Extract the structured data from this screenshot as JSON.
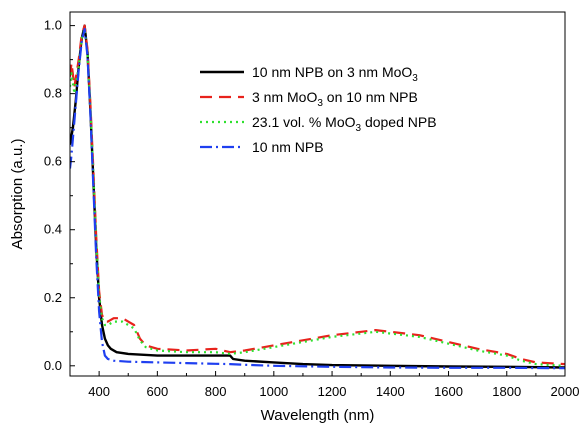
{
  "chart_data": {
    "type": "line",
    "title": "",
    "xlabel": "Wavelength (nm)",
    "ylabel": "Absorption (a.u.)",
    "xlim": [
      300,
      2000
    ],
    "ylim": [
      -0.03,
      1.04
    ],
    "xticks": [
      400,
      600,
      800,
      1000,
      1200,
      1400,
      1600,
      1800,
      2000
    ],
    "yticks": [
      0.0,
      0.2,
      0.4,
      0.6,
      0.8,
      1.0
    ],
    "ytick_labels": [
      "0.0",
      "0.2",
      "0.4",
      "0.6",
      "0.8",
      "1.0"
    ],
    "grid": false,
    "legend_position": "top-right",
    "series": [
      {
        "name": "10 nm NPB on 3 nm MoO3",
        "label_parts": [
          "10 nm NPB on 3 nm MoO",
          "3",
          ""
        ],
        "color": "#000000",
        "dash": "solid",
        "x": [
          300,
          310,
          320,
          330,
          340,
          350,
          360,
          370,
          380,
          390,
          400,
          410,
          420,
          430,
          440,
          460,
          500,
          600,
          700,
          800,
          850,
          860,
          900,
          1000,
          1100,
          1200,
          1400,
          1600,
          1800,
          2000
        ],
        "y": [
          0.65,
          0.7,
          0.78,
          0.88,
          0.96,
          1.0,
          0.92,
          0.75,
          0.55,
          0.35,
          0.2,
          0.12,
          0.08,
          0.06,
          0.05,
          0.04,
          0.035,
          0.03,
          0.03,
          0.03,
          0.03,
          0.02,
          0.015,
          0.01,
          0.005,
          0.002,
          0.0,
          -0.002,
          -0.003,
          -0.005
        ]
      },
      {
        "name": "3 nm MoO3 on 10 nm NPB",
        "label_parts": [
          "3 nm MoO",
          "3",
          " on 10 nm NPB"
        ],
        "color": "#e8221c",
        "dash": "dashed",
        "x": [
          300,
          305,
          315,
          330,
          340,
          350,
          360,
          370,
          380,
          390,
          400,
          410,
          420,
          430,
          450,
          480,
          520,
          540,
          560,
          600,
          700,
          800,
          850,
          900,
          1000,
          1100,
          1200,
          1300,
          1350,
          1400,
          1500,
          1600,
          1700,
          1800,
          1850,
          1900,
          2000
        ],
        "y": [
          0.85,
          0.89,
          0.82,
          0.9,
          0.97,
          1.0,
          0.93,
          0.77,
          0.58,
          0.38,
          0.22,
          0.15,
          0.13,
          0.13,
          0.14,
          0.14,
          0.12,
          0.08,
          0.06,
          0.05,
          0.045,
          0.05,
          0.04,
          0.045,
          0.06,
          0.075,
          0.09,
          0.1,
          0.105,
          0.1,
          0.09,
          0.07,
          0.05,
          0.035,
          0.02,
          0.01,
          0.005
        ]
      },
      {
        "name": "23.1 vol. % MoO3 doped NPB",
        "label_parts": [
          "23.1 vol. % MoO",
          "3",
          " doped NPB"
        ],
        "color": "#2ee02e",
        "dash": "dotted",
        "x": [
          300,
          305,
          315,
          330,
          340,
          350,
          360,
          370,
          380,
          390,
          400,
          410,
          420,
          430,
          450,
          480,
          520,
          540,
          560,
          600,
          700,
          800,
          850,
          900,
          1000,
          1100,
          1200,
          1300,
          1350,
          1400,
          1500,
          1600,
          1700,
          1800,
          1850,
          1900,
          2000
        ],
        "y": [
          0.82,
          0.86,
          0.8,
          0.88,
          0.96,
          0.99,
          0.92,
          0.76,
          0.57,
          0.37,
          0.21,
          0.14,
          0.12,
          0.12,
          0.13,
          0.13,
          0.11,
          0.075,
          0.055,
          0.045,
          0.04,
          0.04,
          0.035,
          0.04,
          0.055,
          0.07,
          0.085,
          0.095,
          0.1,
          0.095,
          0.085,
          0.065,
          0.045,
          0.03,
          0.015,
          0.005,
          0.0
        ]
      },
      {
        "name": "10 nm NPB",
        "label_parts": [
          "10 nm NPB",
          "",
          ""
        ],
        "color": "#1f3ff0",
        "dash": "dashdot",
        "x": [
          300,
          305,
          315,
          330,
          340,
          350,
          360,
          370,
          380,
          390,
          400,
          410,
          420,
          430,
          450,
          500,
          600,
          700,
          800,
          850,
          900,
          1000,
          1200,
          1400,
          1600,
          1800,
          2000
        ],
        "y": [
          0.58,
          0.62,
          0.72,
          0.87,
          0.95,
          0.99,
          0.91,
          0.74,
          0.53,
          0.32,
          0.16,
          0.07,
          0.03,
          0.02,
          0.015,
          0.012,
          0.01,
          0.008,
          0.006,
          0.005,
          0.003,
          0.0,
          -0.003,
          -0.005,
          -0.006,
          -0.006,
          -0.007
        ]
      }
    ]
  }
}
